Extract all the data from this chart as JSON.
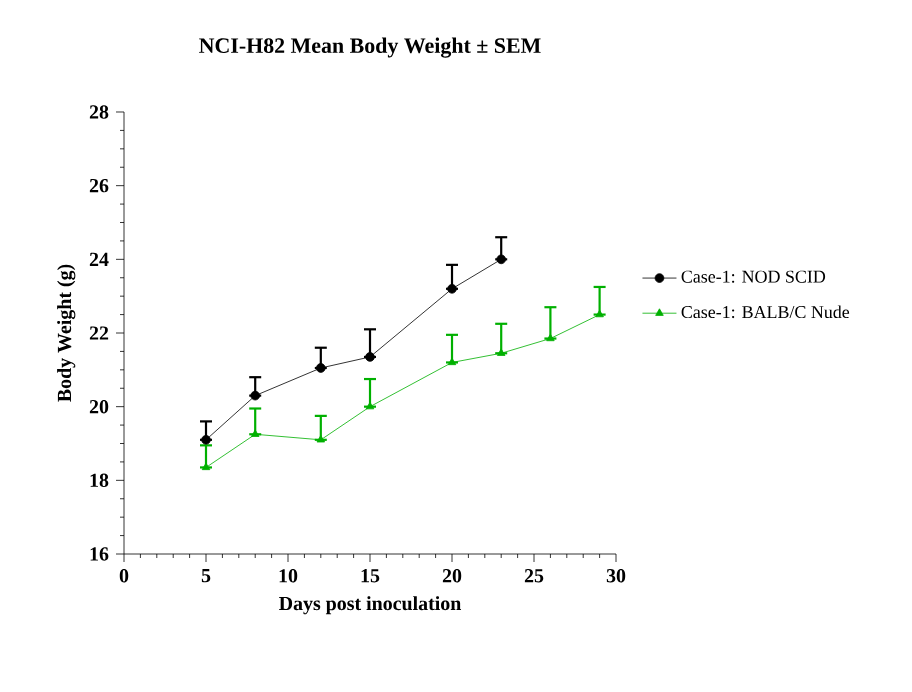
{
  "chart_data": {
    "type": "line",
    "title": "NCI-H82 Mean Body Weight ± SEM",
    "xlabel": "Days post inoculation",
    "ylabel": "Body Weight (g)",
    "xlim": [
      0,
      30
    ],
    "xticks": [
      0,
      5,
      10,
      15,
      20,
      25,
      30
    ],
    "ylim": [
      16,
      28
    ],
    "yticks": [
      16,
      18,
      20,
      22,
      24,
      26,
      28
    ],
    "legend": "right",
    "grid": false,
    "series": [
      {
        "name": "Case-1: NOD SCID",
        "color": "#000000",
        "marker": "circle",
        "x": [
          5,
          8,
          12,
          15,
          20,
          23
        ],
        "values": [
          19.1,
          20.3,
          21.05,
          21.35,
          23.2,
          24.0
        ],
        "errors": [
          [
            19.1,
            19.6
          ],
          [
            20.3,
            20.8
          ],
          [
            21.05,
            21.6
          ],
          [
            21.35,
            22.1
          ],
          [
            23.2,
            23.85
          ],
          [
            24.0,
            24.6
          ]
        ]
      },
      {
        "name": "Case-1: BALB/C Nude",
        "color": "#00b000",
        "marker": "triangle",
        "x": [
          5,
          8,
          12,
          15,
          20,
          23,
          26,
          29
        ],
        "values": [
          18.35,
          19.25,
          19.1,
          20.0,
          21.2,
          21.45,
          21.85,
          22.5
        ],
        "errors": [
          [
            18.35,
            18.95
          ],
          [
            19.25,
            19.95
          ],
          [
            19.1,
            19.75
          ],
          [
            20.0,
            20.75
          ],
          [
            21.2,
            21.95
          ],
          [
            21.45,
            22.25
          ],
          [
            21.85,
            22.7
          ],
          [
            22.5,
            23.25
          ]
        ]
      }
    ]
  }
}
